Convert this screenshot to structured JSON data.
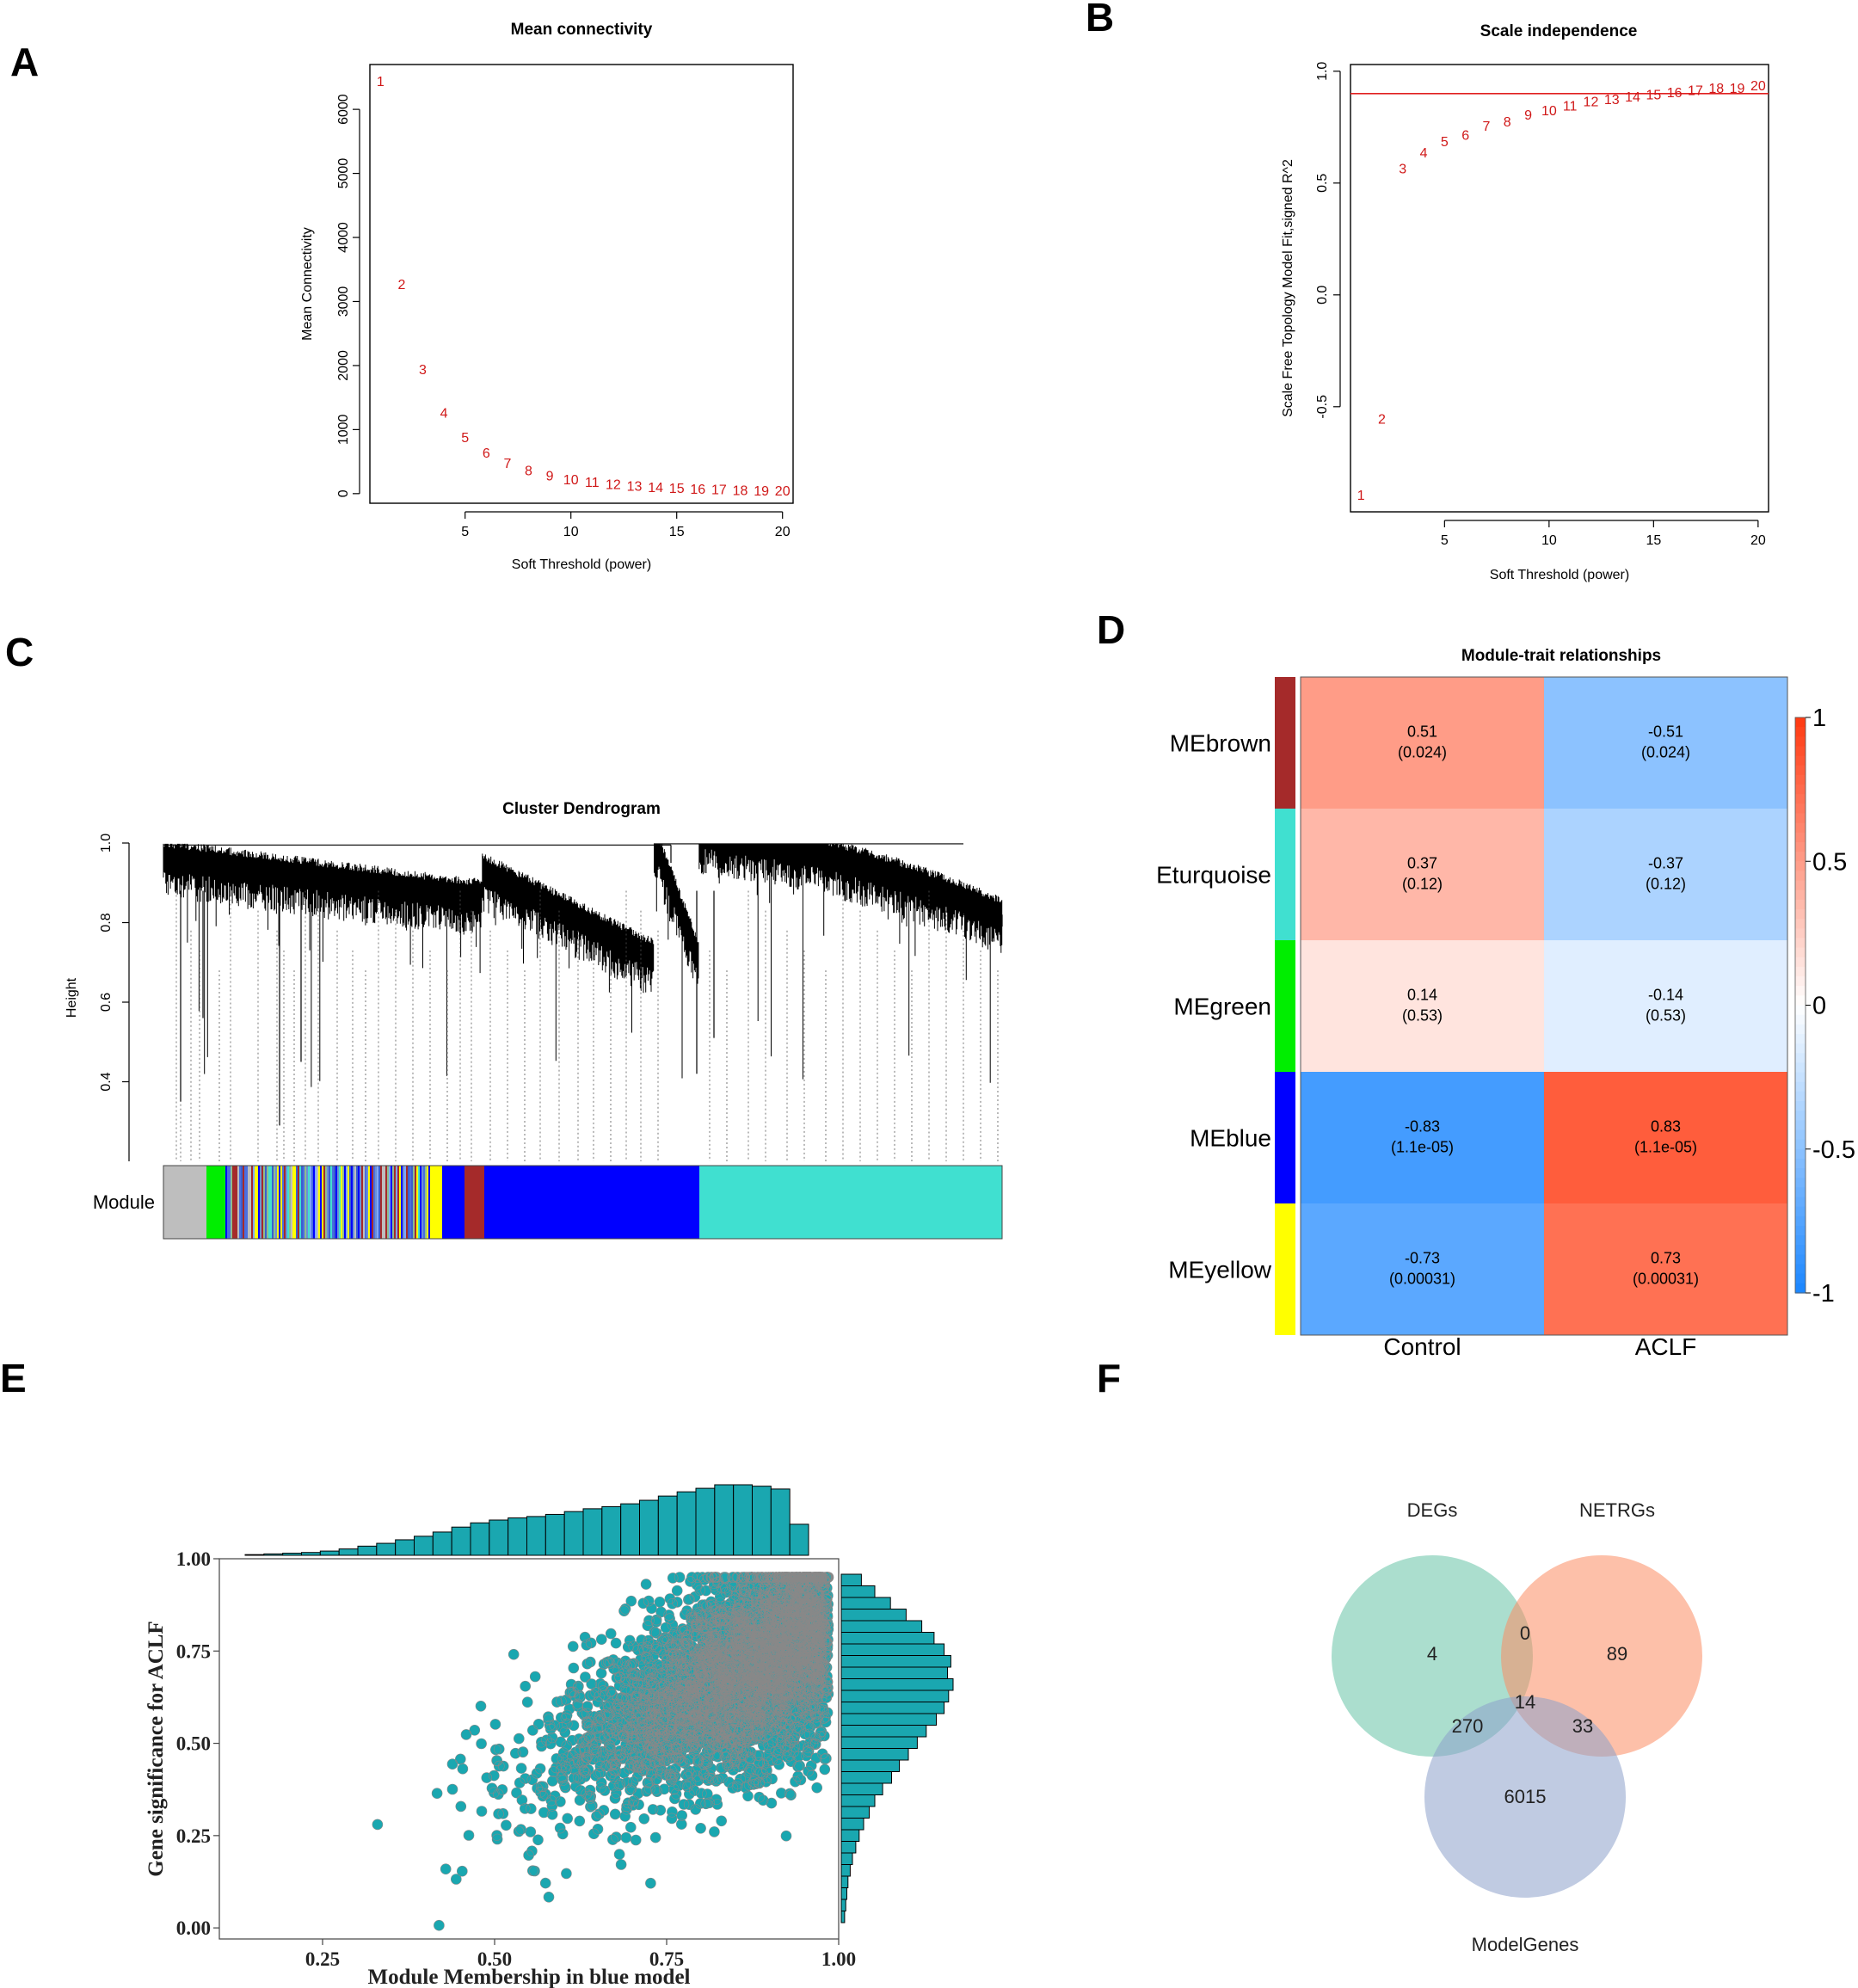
{
  "panel_labels": [
    "A",
    "B",
    "C",
    "D",
    "E",
    "F"
  ],
  "chart_data": [
    {
      "id": "A",
      "type": "scatter",
      "title": "Mean connectivity",
      "xlabel": "Soft Threshold (power)",
      "ylabel": "Mean Connectivity",
      "xlim": [
        0.5,
        20.5
      ],
      "ylim": [
        -150,
        6700
      ],
      "xticks": [
        5,
        10,
        15,
        20
      ],
      "yticks": [
        0,
        1000,
        2000,
        3000,
        4000,
        5000,
        6000
      ],
      "marker": "power labels",
      "color": "#d01818",
      "x": [
        1,
        2,
        3,
        4,
        5,
        6,
        7,
        8,
        9,
        10,
        11,
        12,
        13,
        14,
        15,
        16,
        17,
        18,
        19,
        20
      ],
      "y": [
        6420,
        3250,
        1920,
        1240,
        860,
        620,
        460,
        340,
        260,
        200,
        160,
        130,
        100,
        80,
        70,
        55,
        45,
        35,
        30,
        25
      ]
    },
    {
      "id": "B",
      "type": "scatter",
      "title": "Scale independence",
      "xlabel": "Soft Threshold (power)",
      "ylabel": "Scale Free Topology Model Fit,signed R^2",
      "xlim": [
        0.5,
        20.5
      ],
      "ylim": [
        -0.97,
        1.03
      ],
      "xticks": [
        5,
        10,
        15,
        20
      ],
      "yticks": [
        -0.5,
        0.0,
        0.5,
        1.0
      ],
      "marker": "power labels",
      "color": "#d01818",
      "hline": 0.9,
      "x": [
        1,
        2,
        3,
        4,
        5,
        6,
        7,
        8,
        9,
        10,
        11,
        12,
        13,
        14,
        15,
        16,
        17,
        18,
        19,
        20
      ],
      "y": [
        -0.9,
        -0.56,
        0.56,
        0.63,
        0.68,
        0.71,
        0.75,
        0.77,
        0.8,
        0.82,
        0.84,
        0.86,
        0.87,
        0.88,
        0.89,
        0.9,
        0.91,
        0.92,
        0.92,
        0.93
      ]
    },
    {
      "id": "C",
      "type": "dendrogram",
      "title": "Cluster Dendrogram",
      "ylabel": "Height",
      "ylim": [
        0.2,
        1.0
      ],
      "yticks": [
        0.4,
        0.6,
        0.8,
        1.0
      ],
      "module_label": "Module",
      "module_colors": [
        "grey",
        "green",
        "grey",
        "yellow",
        "blue",
        "brown",
        "blue",
        "turquoise"
      ],
      "module_color_hex": {
        "grey": "#bebebe",
        "green": "#00ee00",
        "yellow": "#ffff00",
        "blue": "#0000ff",
        "brown": "#a52a2a",
        "turquoise": "#40e0d0"
      }
    },
    {
      "id": "D",
      "type": "heatmap",
      "title": "Module-trait relationships",
      "rows": [
        "MEbrown",
        "Eturquoise",
        "MEgreen",
        "MEblue",
        "MEyellow"
      ],
      "row_colors": [
        "#a52a2a",
        "#40e0d0",
        "#00ee00",
        "#0000ff",
        "#ffff00"
      ],
      "columns": [
        "Control",
        "ACLF"
      ],
      "values": [
        [
          0.51,
          -0.51
        ],
        [
          0.37,
          -0.37
        ],
        [
          0.14,
          -0.14
        ],
        [
          -0.83,
          0.83
        ],
        [
          -0.73,
          0.73
        ]
      ],
      "labels": [
        [
          [
            "0.51",
            "(0.024)"
          ],
          [
            "-0.51",
            "(0.024)"
          ]
        ],
        [
          [
            "0.37",
            "(0.12)"
          ],
          [
            "-0.37",
            "(0.12)"
          ]
        ],
        [
          [
            "0.14",
            "(0.53)"
          ],
          [
            "-0.14",
            "(0.53)"
          ]
        ],
        [
          [
            "-0.83",
            "(1.1e-05)"
          ],
          [
            "0.83",
            "(1.1e-05)"
          ]
        ],
        [
          [
            "-0.73",
            "(0.00031)"
          ],
          [
            "0.73",
            "(0.00031)"
          ]
        ]
      ],
      "legend_ticks": [
        "1",
        "0.5",
        "0",
        "-0.5",
        "-1"
      ],
      "colorscale": {
        "neg": "#1e88ff",
        "mid": "#ffffff",
        "pos": "#ff3c14"
      }
    },
    {
      "id": "E",
      "type": "scatter",
      "xlabel": "Module Membership in blue model",
      "ylabel": "Gene significance for ACLF",
      "xlim": [
        0.1,
        1.0
      ],
      "ylim": [
        -0.03,
        1.0
      ],
      "xticks": [
        "0.25",
        "0.50",
        "0.75",
        "1.00"
      ],
      "yticks": [
        "0.00",
        "0.25",
        "0.50",
        "0.75",
        "1.00"
      ],
      "color": "#1aa7b0",
      "cor": 0.7,
      "n_points": 4200,
      "top_hist": [
        1,
        2,
        3,
        4,
        6,
        9,
        13,
        17,
        22,
        27,
        33,
        40,
        46,
        50,
        53,
        55,
        58,
        62,
        66,
        69,
        73,
        78,
        84,
        90,
        95,
        100,
        100,
        98,
        94,
        44
      ],
      "right_hist": [
        3,
        4,
        5,
        6,
        8,
        10,
        13,
        16,
        20,
        25,
        30,
        37,
        45,
        52,
        60,
        68,
        76,
        85,
        92,
        96,
        100,
        95,
        98,
        92,
        83,
        72,
        58,
        44,
        30,
        18
      ]
    },
    {
      "id": "F",
      "type": "venn",
      "sets": [
        {
          "name": "DEGs",
          "color": "#66c2a5"
        },
        {
          "name": "NETRGs",
          "color": "#fc8d62"
        },
        {
          "name": "ModelGenes",
          "color": "#8da0cb"
        }
      ],
      "regions": {
        "DEGs_only": "4",
        "NETRGs_only": "89",
        "ModelGenes_only": "6015",
        "DEGs_NETRGs": "0",
        "DEGs_ModelGenes": "270",
        "NETRGs_ModelGenes": "33",
        "all": "14"
      }
    }
  ]
}
